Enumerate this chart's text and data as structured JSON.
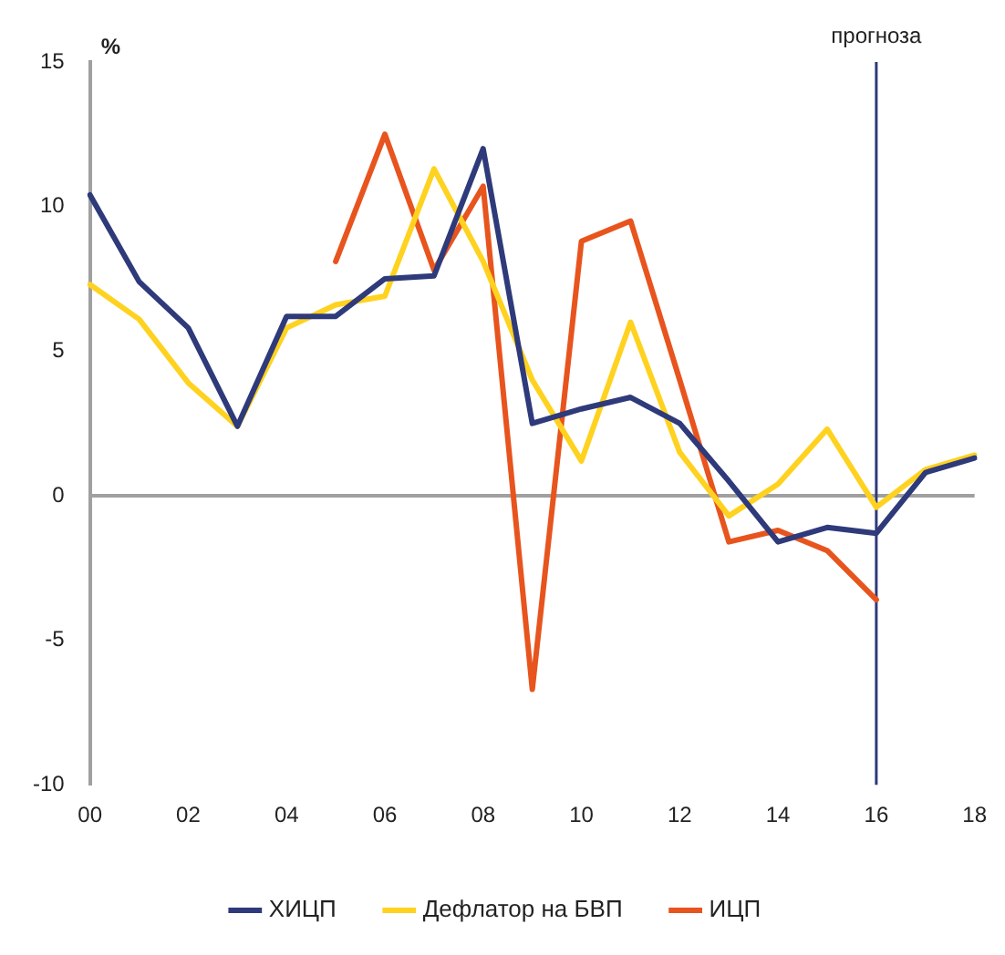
{
  "chart_data": {
    "type": "line",
    "ylabel": "%",
    "categories": [
      "00",
      null,
      "02",
      null,
      "04",
      null,
      "06",
      null,
      "08",
      null,
      "10",
      null,
      "12",
      null,
      "14",
      null,
      "16",
      null,
      "18"
    ],
    "series": [
      {
        "name": "ХИЦП",
        "color": "#2e3a7a",
        "values": [
          10.4,
          7.4,
          5.8,
          2.4,
          6.2,
          6.2,
          7.5,
          7.6,
          12.0,
          2.5,
          3.0,
          3.4,
          2.5,
          0.5,
          -1.6,
          -1.1,
          -1.3,
          0.8,
          1.3
        ]
      },
      {
        "name": "Дефлатор на БВП",
        "color": "#ffd21f",
        "values": [
          7.3,
          6.1,
          3.9,
          2.4,
          5.8,
          6.6,
          6.9,
          11.3,
          8.1,
          4.0,
          1.2,
          6.0,
          1.5,
          -0.7,
          0.4,
          2.3,
          -0.4,
          0.9,
          1.4
        ]
      },
      {
        "name": "ИЦП",
        "color": "#e8541e",
        "values": [
          null,
          null,
          null,
          null,
          null,
          8.1,
          12.5,
          7.8,
          10.7,
          -6.7,
          8.8,
          9.5,
          4.0,
          -1.6,
          -1.2,
          -1.9,
          -3.6,
          null,
          null
        ]
      }
    ],
    "ylim": [
      -10,
      15
    ],
    "yticks": [
      -10,
      -5,
      0,
      5,
      10,
      15
    ],
    "ref_lines": [
      {
        "axis": "y",
        "value": 0,
        "color": "#a0a0a0"
      },
      {
        "axis": "x",
        "value": "16",
        "label": "прогноза",
        "color": "#2e3a7a"
      }
    ],
    "grid": false,
    "legend": "bottom",
    "marker": "none",
    "line_style": "solid"
  }
}
